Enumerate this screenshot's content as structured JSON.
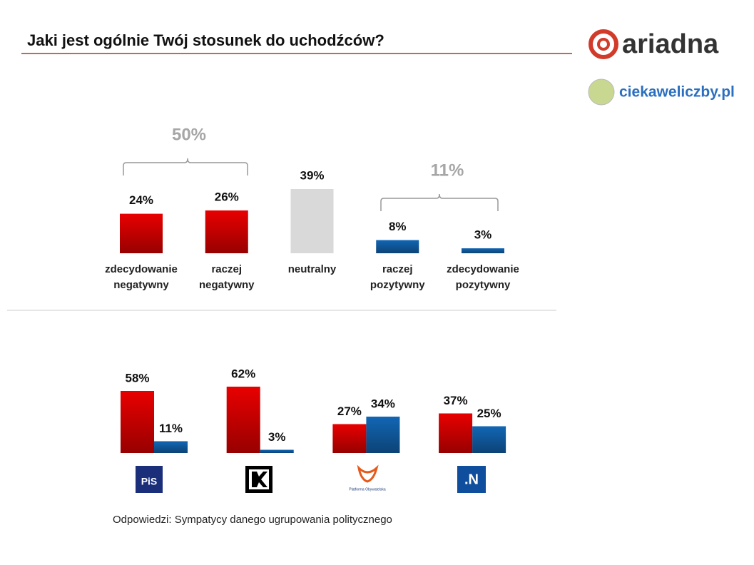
{
  "header": {
    "title": "Jaki jest ogólnie Twój stosunek do uchodźców?",
    "brand": "ariadna",
    "site": "ciekaweliczby.pl"
  },
  "chart_data": [
    {
      "type": "bar",
      "categories": [
        [
          "zdecydowanie",
          "negatywny"
        ],
        [
          "raczej",
          "negatywny"
        ],
        [
          "neutralny"
        ],
        [
          "raczej",
          "pozytywny"
        ],
        [
          "zdecydowanie",
          "pozytywny"
        ]
      ],
      "values": [
        24,
        26,
        39,
        8,
        3
      ],
      "value_labels": [
        "24%",
        "26%",
        "39%",
        "8%",
        "3%"
      ],
      "colors": [
        "#e80000",
        "#e80000",
        "#d9d9d9",
        "#1266b4",
        "#1266b4"
      ],
      "annotations": [
        "50%",
        "11%"
      ]
    },
    {
      "type": "grouped_bar",
      "categories": [
        "PiS",
        null,
        "Platforma Obywatelska",
        ".N"
      ],
      "series": [
        {
          "color": "#e80000",
          "values": [
            58,
            62,
            27,
            37
          ],
          "value_labels": [
            "58%",
            "62%",
            "27%",
            "37%"
          ]
        },
        {
          "color": "#1266b4",
          "values": [
            11,
            3,
            34,
            25
          ],
          "value_labels": [
            "11%",
            "3%",
            "34%",
            "25%"
          ]
        }
      ],
      "note": "Odpowiedzi: Sympatycy danego ugrupowania politycznego"
    }
  ]
}
